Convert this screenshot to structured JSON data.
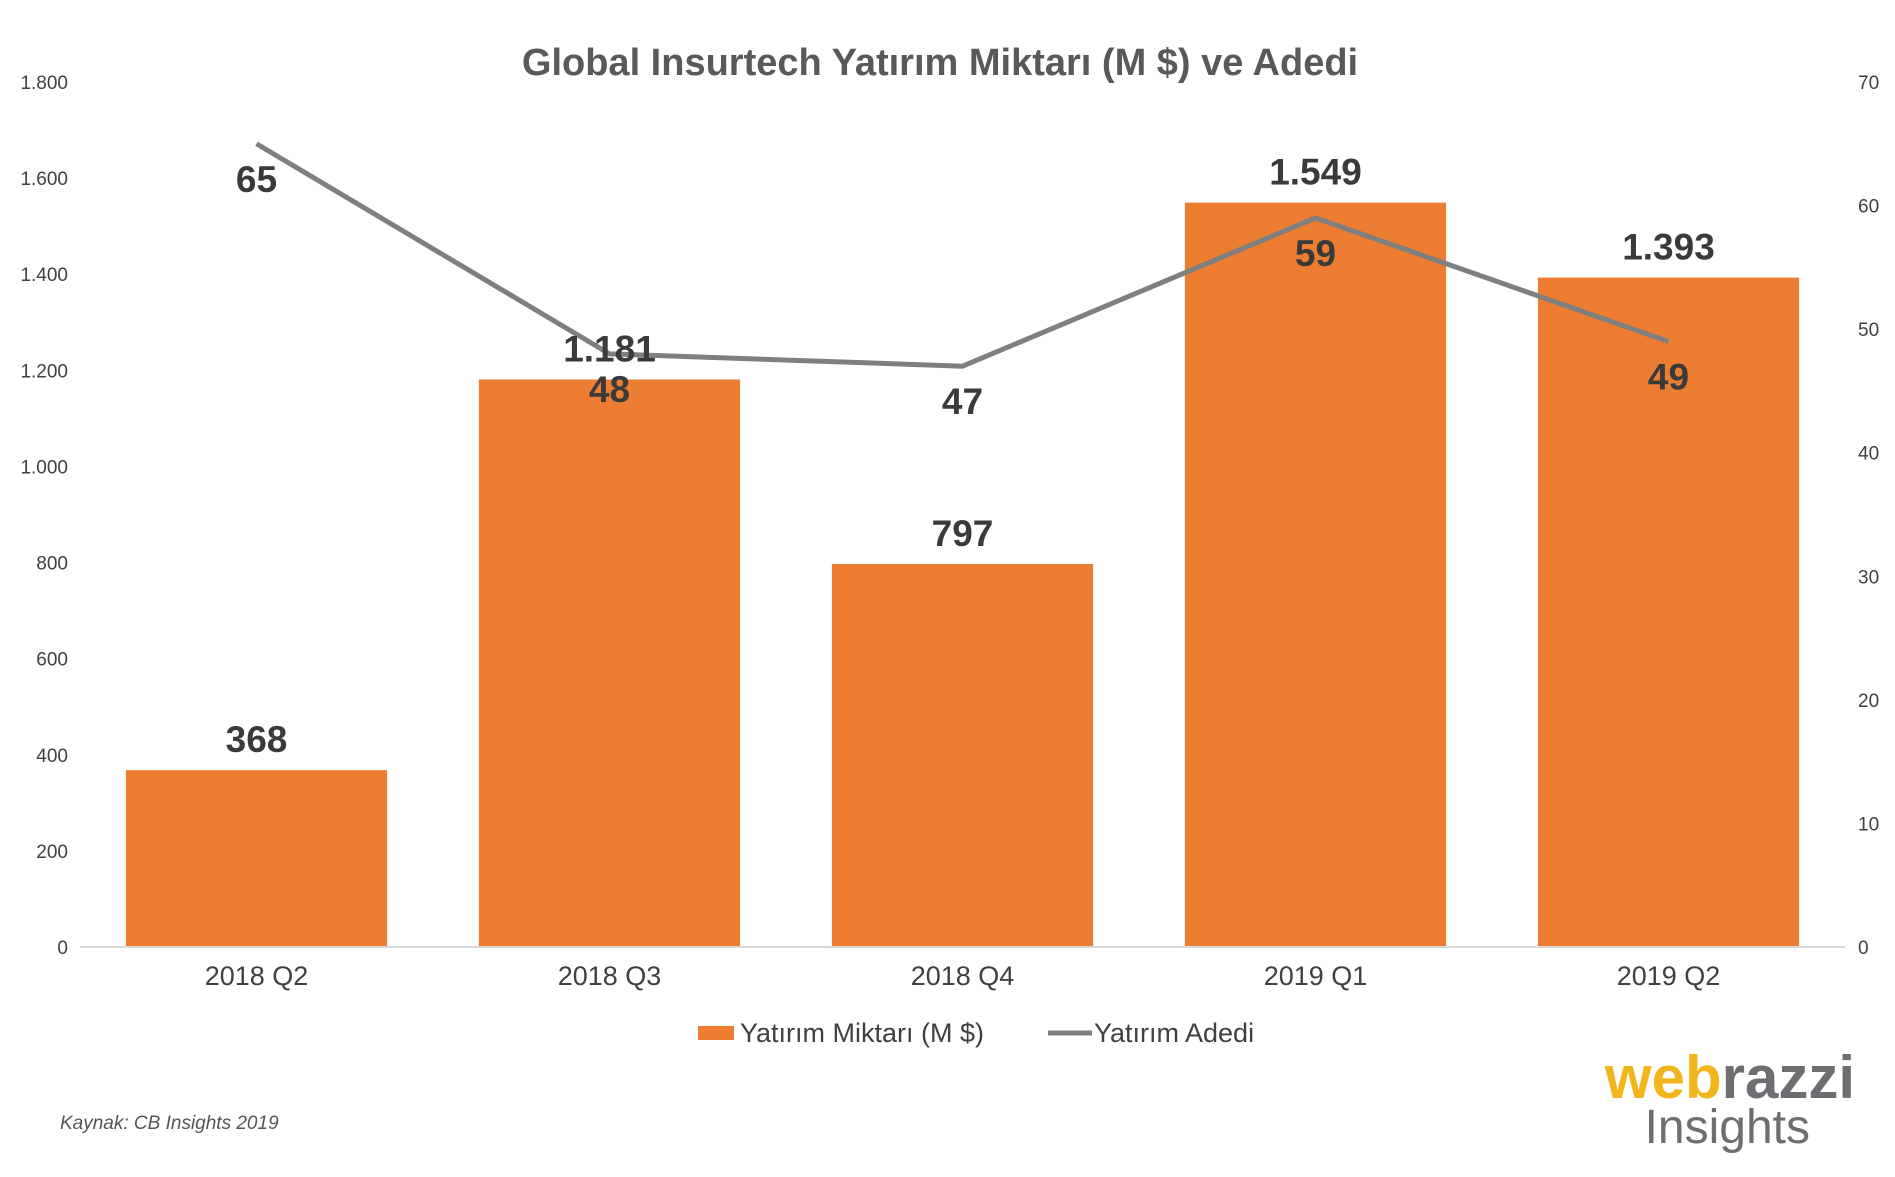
{
  "chart_data": {
    "type": "bar",
    "title": "Global Insurtech Yatırım Miktarı (M $) ve Adedi",
    "categories": [
      "2018 Q2",
      "2018 Q3",
      "2018 Q4",
      "2019 Q1",
      "2019 Q2"
    ],
    "series": [
      {
        "name": "Yatırım Miktarı (M $)",
        "type": "bar",
        "axis": "left",
        "color": "#ed7d31",
        "values": [
          368,
          1181,
          797,
          1549,
          1393
        ],
        "labels": [
          "368",
          "1.181",
          "797",
          "1.549",
          "1.393"
        ]
      },
      {
        "name": "Yatırım Adedi",
        "type": "line",
        "axis": "right",
        "color": "#7f7f7f",
        "values": [
          65,
          48,
          47,
          59,
          49
        ],
        "labels": [
          "65",
          "48",
          "47",
          "59",
          "49"
        ]
      }
    ],
    "y_left": {
      "min": 0,
      "max": 1800,
      "ticks": [
        0,
        200,
        400,
        600,
        800,
        1000,
        1200,
        1400,
        1600,
        1800
      ],
      "tick_labels": [
        "0",
        "200",
        "400",
        "600",
        "800",
        "1.000",
        "1.200",
        "1.400",
        "1.600",
        "1.800"
      ]
    },
    "y_right": {
      "min": 0,
      "max": 70,
      "ticks": [
        0,
        10,
        20,
        30,
        40,
        50,
        60,
        70
      ],
      "tick_labels": [
        "0",
        "10",
        "20",
        "30",
        "40",
        "50",
        "60",
        "70"
      ]
    },
    "grid": false,
    "legend": "bottom"
  },
  "source_note": "Kaynak: CB Insights 2019",
  "logo": {
    "part1": "web",
    "part2": "razzi",
    "subtitle": "Insights"
  }
}
